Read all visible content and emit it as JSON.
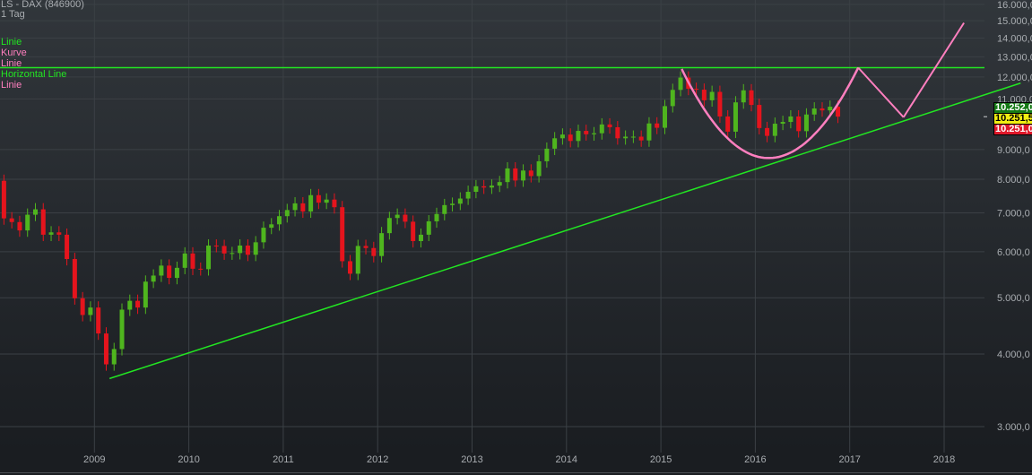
{
  "header": {
    "title": "LS - DAX (846900)",
    "interval": "1 Tag"
  },
  "legend": [
    {
      "label": "Linie",
      "color": "#22e622"
    },
    {
      "label": "Kurve",
      "color": "#ff7fbf"
    },
    {
      "label": "Linie",
      "color": "#ff7fbf"
    },
    {
      "label": "Horizontal Line",
      "color": "#22e622"
    },
    {
      "label": "Linie",
      "color": "#ff7fbf"
    }
  ],
  "price_boxes": [
    {
      "label": "10.252,0",
      "bg": "#157a15",
      "fg": "#ffffff"
    },
    {
      "label": "10.251,5",
      "bg": "#f2ee12",
      "fg": "#000000"
    },
    {
      "label": "10.251,0",
      "bg": "#e0182a",
      "fg": "#ffffff"
    }
  ],
  "colors": {
    "up": "#4fb51e",
    "down": "#e5141d",
    "green_line": "#22e622",
    "pink_line": "#ff7fbf",
    "grid": "#3b4045",
    "axis_text": "#a9adb1"
  },
  "chart_data": {
    "type": "candlestick",
    "scale": "log",
    "ylim": [
      2690,
      16260
    ],
    "xlim": [
      2008.0,
      2018.43
    ],
    "grid": true,
    "y_ticks": [
      {
        "value": 16000,
        "label": "16.000,0"
      },
      {
        "value": 15000,
        "label": "15.000,0"
      },
      {
        "value": 14000,
        "label": "14.000,0"
      },
      {
        "value": 13000,
        "label": "13.000,0"
      },
      {
        "value": 12000,
        "label": "12.000,0"
      },
      {
        "value": 11000,
        "label": "11.000,0"
      },
      {
        "value": 9000,
        "label": "9.000,0"
      },
      {
        "value": 8000,
        "label": "8.000,0"
      },
      {
        "value": 7000,
        "label": "7.000,0"
      },
      {
        "value": 6000,
        "label": "6.000,0"
      },
      {
        "value": 5000,
        "label": "5.000,0"
      },
      {
        "value": 4000,
        "label": "4.000,0"
      },
      {
        "value": 3000,
        "label": "3.000,0"
      }
    ],
    "x_ticks": [
      "2009",
      "2010",
      "2011",
      "2012",
      "2013",
      "2014",
      "2015",
      "2016",
      "2017",
      "2018"
    ],
    "start": "2008-01",
    "monthly_close": [
      6850,
      6750,
      6530,
      6950,
      7100,
      6420,
      6480,
      6420,
      5830,
      4990,
      4670,
      4810,
      4340,
      3840,
      4080,
      4770,
      4940,
      4810,
      5330,
      5460,
      5680,
      5410,
      5630,
      5960,
      5610,
      5600,
      6150,
      6140,
      5960,
      5970,
      6150,
      5930,
      6230,
      6600,
      6690,
      6910,
      7080,
      7270,
      7040,
      7510,
      7290,
      7380,
      7160,
      5780,
      5500,
      6140,
      6090,
      5900,
      6460,
      6860,
      6950,
      6760,
      6260,
      6420,
      6770,
      6970,
      7220,
      7260,
      7410,
      7610,
      7780,
      7740,
      7800,
      7910,
      8350,
      7960,
      8280,
      8100,
      8590,
      9030,
      9410,
      9550,
      9310,
      9690,
      9560,
      9600,
      9940,
      9830,
      9410,
      9470,
      9470,
      9330,
      9980,
      9810,
      10690,
      11400,
      11970,
      11450,
      11410,
      10940,
      11310,
      10260,
      9660,
      10850,
      11380,
      10740,
      9800,
      9500,
      9970,
      10040,
      10260,
      9680,
      10340,
      10590,
      10510,
      10665,
      10252
    ],
    "first_open": 7950,
    "current_price": 10251.5,
    "drawings": {
      "trend_line": {
        "from": [
          2009.16,
          3630
        ],
        "to": [
          2018.81,
          11710
        ]
      },
      "horizontal_line": {
        "price": 12450
      },
      "curve": {
        "start": [
          2015.22,
          12390
        ],
        "bottom": [
          2016.14,
          8700
        ],
        "end": [
          2017.09,
          12450
        ]
      },
      "line_down": {
        "from": [
          2017.09,
          12450
        ],
        "to": [
          2017.57,
          10230
        ]
      },
      "line_up": {
        "from": [
          2017.57,
          10230
        ],
        "to": [
          2018.21,
          14870
        ]
      }
    }
  }
}
